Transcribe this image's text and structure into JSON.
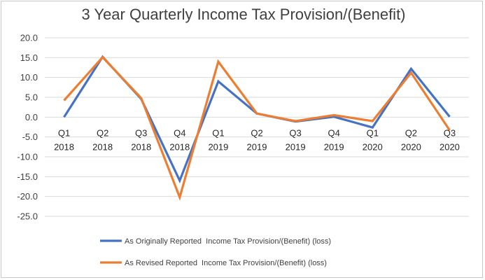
{
  "chart_data": {
    "type": "line",
    "title": "3 Year Quarterly Income Tax Provision/(Benefit)",
    "categories": [
      [
        "Q1",
        "2018"
      ],
      [
        "Q2",
        "2018"
      ],
      [
        "Q3",
        "2018"
      ],
      [
        "Q4",
        "2018"
      ],
      [
        "Q1",
        "2019"
      ],
      [
        "Q2",
        "2019"
      ],
      [
        "Q3",
        "2019"
      ],
      [
        "Q4",
        "2019"
      ],
      [
        "Q1",
        "2020"
      ],
      [
        "Q2",
        "2020"
      ],
      [
        "Q3",
        "2020"
      ]
    ],
    "ylim": [
      -25,
      20
    ],
    "yticks": [
      "20.0",
      "15.0",
      "10.0",
      "5.0",
      "0.0",
      "-5.0",
      "-10.0",
      "-15.0",
      "-20.0",
      "-25.0"
    ],
    "ytick_values": [
      20,
      15,
      10,
      5,
      0,
      -5,
      -10,
      -15,
      -20,
      -25
    ],
    "grid": true,
    "legend_position": "bottom",
    "series": [
      {
        "name": "As Originally Reported  Income Tax Provision/(Benefit) (loss)",
        "color": "#4472c4",
        "values": [
          0.0,
          15.2,
          4.6,
          -16.0,
          9.0,
          0.9,
          -1.1,
          0.1,
          -2.6,
          12.2,
          0.1
        ]
      },
      {
        "name": "As Revised Reported  Income Tax Provision/(Benefit) (loss)",
        "color": "#ed7d31",
        "values": [
          4.2,
          15.1,
          4.8,
          -20.2,
          14.0,
          0.9,
          -1.0,
          0.5,
          -1.0,
          11.2,
          -3.3
        ]
      }
    ]
  }
}
